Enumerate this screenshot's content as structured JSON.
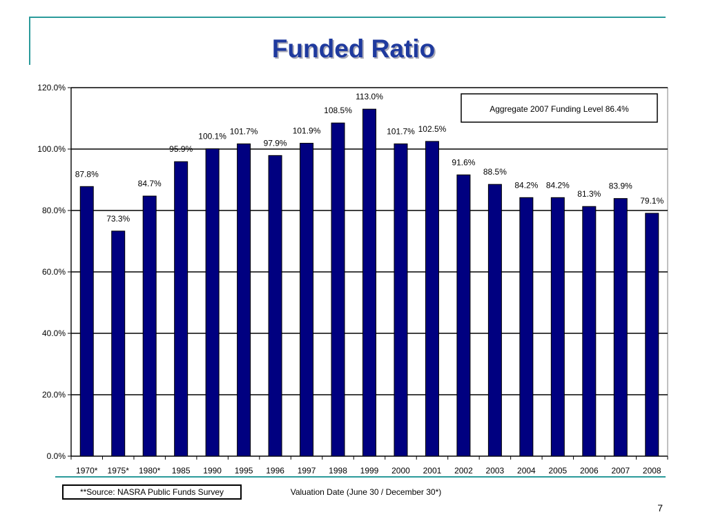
{
  "slide": {
    "title": "Funded Ratio",
    "source": "**Source: NASRA Public Funds Survey",
    "page_number": "7"
  },
  "colors": {
    "bar": "#000080",
    "accent_rule": "#2a9a9a",
    "title": "#1f3a9e"
  },
  "chart_data": {
    "type": "bar",
    "title": "Funded Ratio",
    "xlabel": "Valuation Date (June 30 / December 30*)",
    "ylabel": "",
    "ylim": [
      0,
      120
    ],
    "y_ticks": [
      "0.0%",
      "20.0%",
      "40.0%",
      "60.0%",
      "80.0%",
      "100.0%",
      "120.0%"
    ],
    "grid": true,
    "annotation": "Aggregate 2007 Funding Level 86.4%",
    "categories": [
      "1970*",
      "1975*",
      "1980*",
      "1985",
      "1990",
      "1995",
      "1996",
      "1997",
      "1998",
      "1999",
      "2000",
      "2001",
      "2002",
      "2003",
      "2004",
      "2005",
      "2006",
      "2007",
      "2008"
    ],
    "values": [
      87.8,
      73.3,
      84.7,
      95.9,
      100.1,
      101.7,
      97.9,
      101.9,
      108.5,
      113.0,
      101.7,
      102.5,
      91.6,
      88.5,
      84.2,
      84.2,
      81.3,
      83.9,
      79.1
    ],
    "data_labels": [
      "87.8%",
      "73.3%",
      "84.7%",
      "95.9%",
      "100.1%",
      "101.7%",
      "97.9%",
      "101.9%",
      "108.5%",
      "113.0%",
      "101.7%",
      "102.5%",
      "91.6%",
      "88.5%",
      "84.2%",
      "84.2%",
      "81.3%",
      "83.9%",
      "79.1%"
    ]
  }
}
